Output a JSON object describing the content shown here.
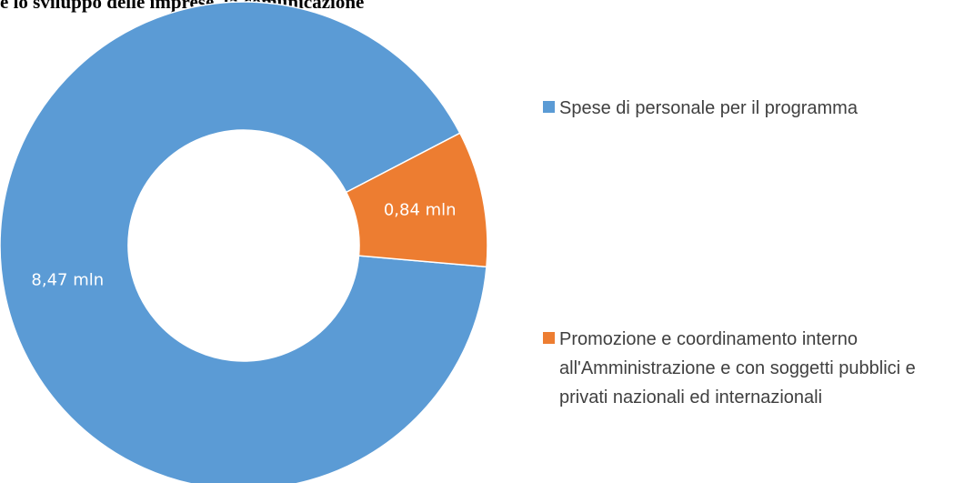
{
  "chart_data": {
    "type": "donut",
    "title": "e lo sviluppo delle imprese, la comunicazione",
    "categories": [
      "Spese di personale per il programma",
      "Promozione e coordinamento interno all'Amministrazione e con soggetti pubblici e privati nazionali ed internazionali"
    ],
    "values": [
      8.47,
      0.84
    ],
    "value_labels": [
      "8,47 mln",
      "0,84 mln"
    ],
    "colors": [
      "#5b9bd5",
      "#ed7d31"
    ],
    "legend": "right"
  }
}
